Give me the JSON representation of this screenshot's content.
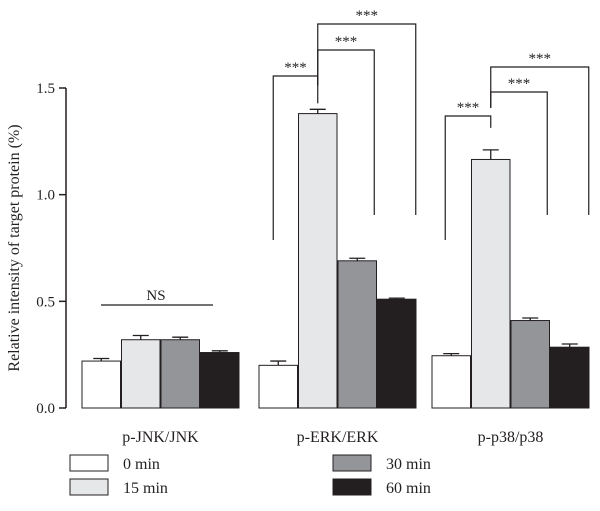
{
  "chart_data": {
    "type": "bar",
    "ylabel": "Relative intensity of target protein (%)",
    "xlabel": "",
    "ylim": [
      0,
      1.5
    ],
    "yticks": [
      "0.0",
      "0.5",
      "1.0",
      "1.5"
    ],
    "categories": [
      "p-JNK/JNK",
      "p-ERK/ERK",
      "p-p38/p38"
    ],
    "series": [
      {
        "name": "0 min",
        "color": "#ffffff",
        "values": [
          0.22,
          0.2,
          0.245
        ],
        "errors": [
          0.012,
          0.02,
          0.01
        ]
      },
      {
        "name": "15 min",
        "color": "#e6e7e8",
        "values": [
          0.32,
          1.38,
          1.165
        ],
        "errors": [
          0.02,
          0.02,
          0.045
        ]
      },
      {
        "name": "30 min",
        "color": "#939598",
        "values": [
          0.32,
          0.69,
          0.41
        ],
        "errors": [
          0.012,
          0.012,
          0.012
        ]
      },
      {
        "name": "60 min",
        "color": "#231f20",
        "values": [
          0.26,
          0.51,
          0.285
        ],
        "errors": [
          0.008,
          0.005,
          0.015
        ]
      }
    ],
    "annotations": {
      "ns_label": "NS",
      "sig_label": "***"
    },
    "grid": false,
    "legend_position": "bottom"
  }
}
